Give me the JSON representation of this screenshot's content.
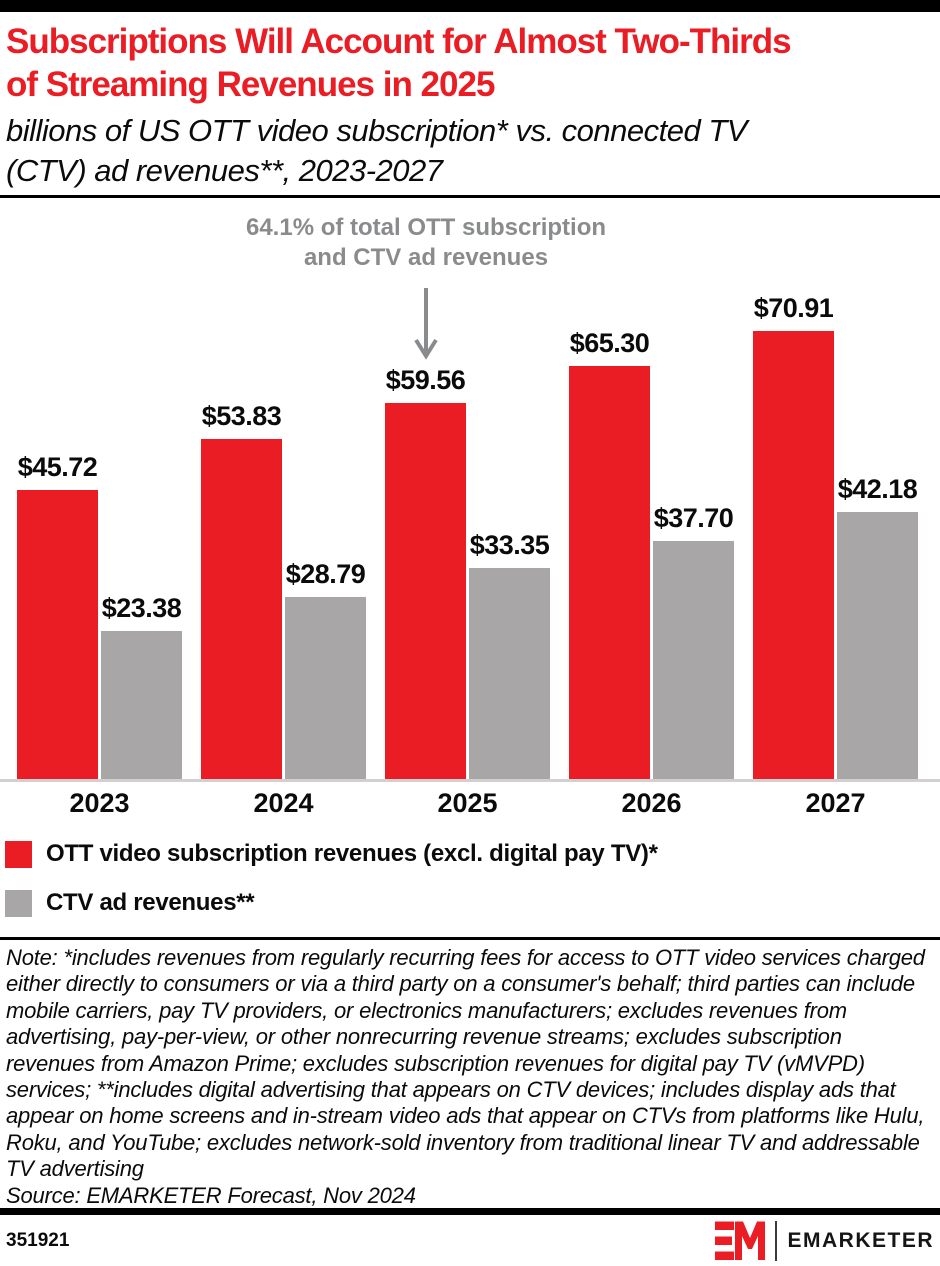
{
  "colors": {
    "red": "#EA1C24",
    "bar-gray": "#A8A6A7",
    "annotation-gray": "#8A8B8D",
    "baseline-gray": "#D2D0D0",
    "text-black": "#0B0B0B"
  },
  "header": {
    "title_line1": "Subscriptions Will Account for Almost Two-Thirds",
    "title_line2": "of Streaming Revenues in 2025",
    "subtitle_line1": "billions of US OTT video subscription* vs. connected TV",
    "subtitle_line2": "(CTV) ad revenues**, 2023-2027"
  },
  "annotation": {
    "line1": "64.1% of total OTT subscription",
    "line2": "and CTV ad revenues"
  },
  "chart_data": {
    "type": "bar",
    "unit": "billions of US dollars",
    "title": "US OTT video subscription vs. connected TV (CTV) ad revenues, 2023-2027",
    "categories": [
      "2023",
      "2024",
      "2025",
      "2026",
      "2027"
    ],
    "series": [
      {
        "name": "OTT video subscription revenues (excl. digital pay TV)*",
        "color": "#EA1C24",
        "values": [
          45.72,
          53.83,
          59.56,
          65.3,
          70.91
        ],
        "labels": [
          "$45.72",
          "$53.83",
          "$59.56",
          "$65.30",
          "$70.91"
        ]
      },
      {
        "name": "CTV ad revenues**",
        "color": "#A8A6A7",
        "values": [
          23.38,
          28.79,
          33.35,
          37.7,
          42.18
        ],
        "labels": [
          "$23.38",
          "$28.79",
          "$33.35",
          "$37.70",
          "$42.18"
        ]
      }
    ],
    "ylim": [
      0,
      75
    ],
    "grid": false,
    "legend_position": "bottom-left",
    "annotation": {
      "text": "64.1% of total OTT subscription and CTV ad revenues",
      "target_category": "2025",
      "target_series": "OTT video subscription revenues (excl. digital pay TV)*"
    }
  },
  "note": {
    "text": "Note: *includes revenues from regularly recurring fees for access to OTT video services charged either directly to consumers or via a third party on a consumer's behalf; third parties can include mobile carriers, pay TV providers, or electronics manufacturers; excludes revenues from advertising, pay-per-view, or other nonrecurring revenue streams; excludes subscription revenues from Amazon Prime; excludes subscription revenues for digital pay TV (vMVPD) services; **includes digital advertising that appears on CTV devices; includes display ads that appear on home screens and in-stream video ads that appear on CTVs from platforms like Hulu, Roku, and YouTube; excludes network-sold inventory from traditional linear TV and addressable TV advertising",
    "source": "Source: EMARKETER Forecast, Nov 2024"
  },
  "footer": {
    "chart_id": "351921",
    "brand": "EMARKETER"
  }
}
